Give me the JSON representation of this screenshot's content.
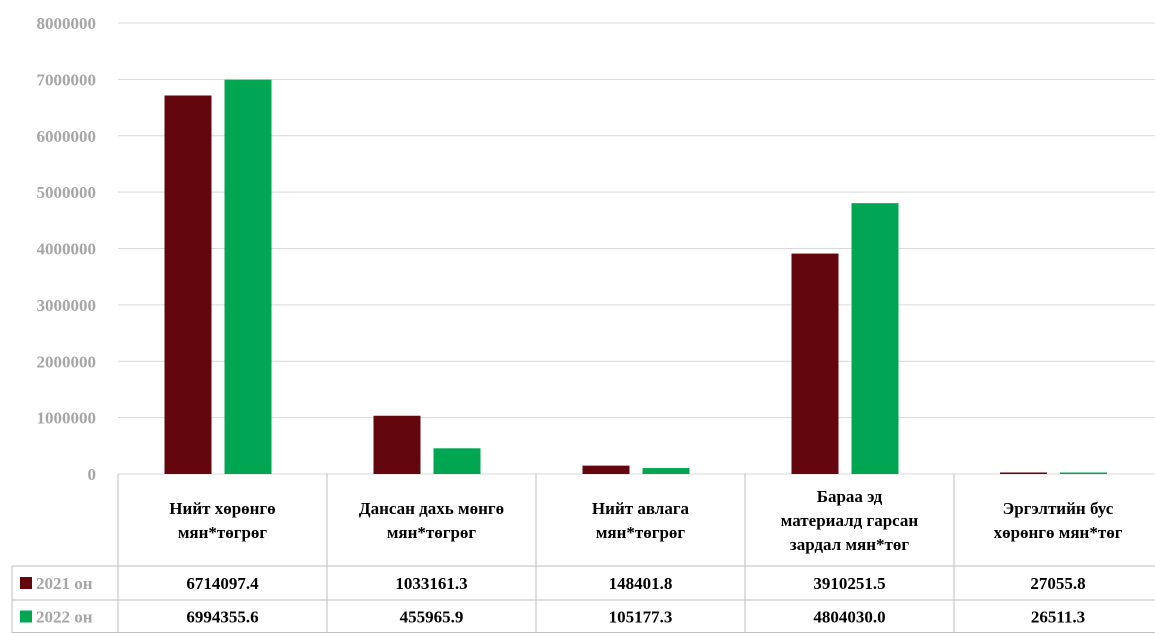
{
  "chart_data": {
    "type": "bar",
    "categories": [
      [
        "Нийт хөрөнгө",
        "мян*төгрөг"
      ],
      [
        "Дансан дахь мөнгө",
        "мян*төгрөг"
      ],
      [
        "Нийт авлага",
        "мян*төгрөг"
      ],
      [
        "Бараа эд",
        "материалд гарсан",
        "зардал мян*төг"
      ],
      [
        "Эргэлтийн бус",
        "хөрөнгө мян*төг"
      ]
    ],
    "series": [
      {
        "name": "2021 он",
        "color": "#63060e",
        "values": [
          6714097.4,
          1033161.3,
          148401.8,
          3910251.5,
          27055.8
        ],
        "labels": [
          "6714097.4",
          "1033161.3",
          "148401.8",
          "3910251.5",
          "27055.8"
        ]
      },
      {
        "name": "2022 он",
        "color": "#00a651",
        "values": [
          6994355.6,
          455965.9,
          105177.3,
          4804030.0,
          26511.3
        ],
        "labels": [
          "6994355.6",
          "455965.9",
          "105177.3",
          "4804030.0",
          "26511.3"
        ]
      }
    ],
    "yticks": [
      "0",
      "1000000",
      "2000000",
      "3000000",
      "4000000",
      "5000000",
      "6000000",
      "7000000",
      "8000000"
    ],
    "ylim": [
      0,
      8000000
    ],
    "grid": true,
    "legend": "table-left"
  }
}
